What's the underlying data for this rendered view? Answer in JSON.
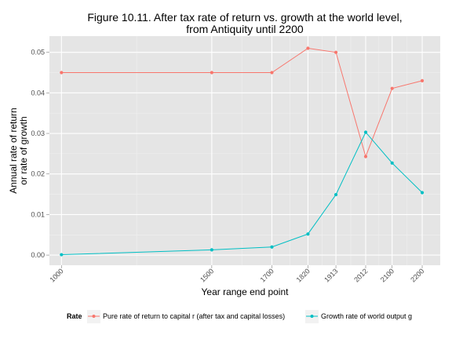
{
  "chart_data": {
    "type": "line",
    "title": "Figure 10.11. After tax rate of return vs. growth at the world level,",
    "subtitle": "from Antiquity until 2200",
    "xlabel": "Year range end point",
    "ylabel_line1": "Annual rate of return",
    "ylabel_line2": "or rate of growth",
    "x": [
      1000,
      1500,
      1700,
      1820,
      1913,
      2012,
      2100,
      2200
    ],
    "x_tick_labels": [
      "1000",
      "1500",
      "1700",
      "1820",
      "1913",
      "2012",
      "2100",
      "2200"
    ],
    "xlim": [
      960,
      2260
    ],
    "ylim": [
      -0.0025,
      0.054
    ],
    "y_ticks": [
      0,
      0.01,
      0.02,
      0.03,
      0.04,
      0.05
    ],
    "y_tick_labels": [
      "0.00",
      "0.01",
      "0.02",
      "0.03",
      "0.04",
      "0.05"
    ],
    "grid": true,
    "legend_title": "Rate",
    "legend_position": "bottom",
    "series": [
      {
        "name": "Pure rate of return to capital r (after tax and capital losses)",
        "color": "#F8766D",
        "values": [
          0.045,
          0.045,
          0.045,
          0.051,
          0.05,
          0.0243,
          0.0411,
          0.043
        ]
      },
      {
        "name": "Growth rate of world output g",
        "color": "#00BFC4",
        "values": [
          0.0001,
          0.0013,
          0.002,
          0.0052,
          0.0149,
          0.0303,
          0.0227,
          0.0154
        ]
      }
    ]
  }
}
